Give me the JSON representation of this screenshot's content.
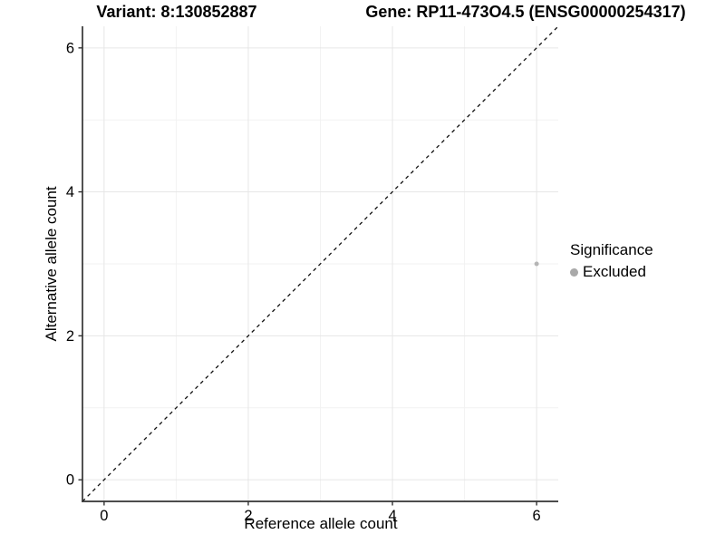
{
  "titles": {
    "variant": "Variant: 8:130852887",
    "gene": "Gene: RP11-473O4.5 (ENSG00000254317)"
  },
  "chart_data": {
    "type": "scatter",
    "xlabel": "Reference allele count",
    "ylabel": "Alternative allele count",
    "xlim": [
      -0.3,
      6.3
    ],
    "ylim": [
      -0.3,
      6.3
    ],
    "xticks": [
      0,
      2,
      4,
      6
    ],
    "yticks": [
      0,
      2,
      4,
      6
    ],
    "xminor": [
      1,
      3,
      5
    ],
    "yminor": [
      1,
      3,
      5
    ],
    "grid": "major+minor",
    "points": [
      {
        "x": 6,
        "y": 3,
        "significance": "Excluded"
      }
    ],
    "identity_line": {
      "from": [
        -0.3,
        -0.3
      ],
      "to": [
        6.3,
        6.3
      ],
      "style": "dashed",
      "color": "#111111"
    },
    "legend": {
      "title": "Significance",
      "position": "right",
      "entries": [
        {
          "label": "Excluded",
          "color": "#a9a9a9"
        }
      ]
    },
    "style": {
      "point_radius": 2.5,
      "point_color": "#b5b5b5",
      "grid_major": "#e6e6e6",
      "grid_minor": "#f2f2f2",
      "axis_line": "#333333",
      "tick_color": "#333333",
      "tick_label_color": "#000000",
      "tick_label_size": 16.5
    }
  }
}
